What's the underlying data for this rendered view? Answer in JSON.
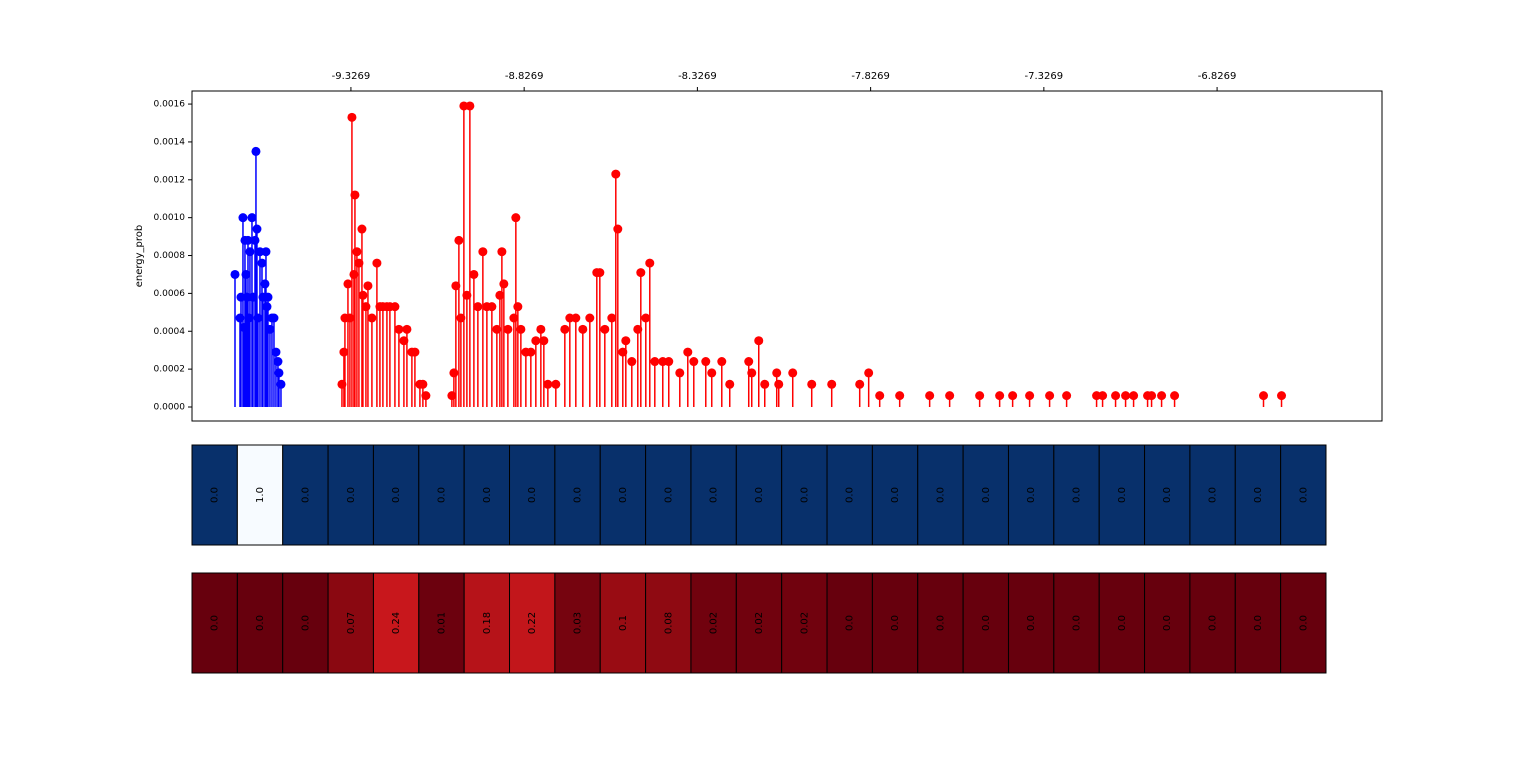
{
  "chart_data": [
    {
      "type": "stem",
      "ylabel": "energy_prob",
      "xlim": [
        -9.7856,
        -6.3509
      ],
      "xticks": [
        -9.3269,
        -8.8269,
        -8.3269,
        -7.8269,
        -7.3269,
        -6.8269
      ],
      "ylim": [
        -7.4e-05,
        0.001669
      ],
      "yticks": [
        {
          "value": 0,
          "label": "0.0000"
        },
        {
          "value": 0.0002,
          "label": "0.0002"
        },
        {
          "value": 0.0004,
          "label": "0.0004"
        },
        {
          "value": 0.0006,
          "label": "0.0006"
        },
        {
          "value": 0.0008,
          "label": "0.0008"
        },
        {
          "value": 0.001,
          "label": "0.0010"
        },
        {
          "value": 0.0012,
          "label": "0.0012"
        },
        {
          "value": 0.0014,
          "label": "0.0014"
        },
        {
          "value": 0.0016,
          "label": "0.0016"
        }
      ],
      "series": [
        {
          "color": "#0000ff",
          "x": [
            -9.6615,
            -9.6471,
            -9.6442,
            -9.6385,
            -9.6356,
            -9.6327,
            -9.6298,
            -9.6269,
            -9.624,
            -9.6212,
            -9.6183,
            -9.6125,
            -9.6096,
            -9.6038,
            -9.601,
            -9.5981,
            -9.5952,
            -9.5894,
            -9.5836,
            -9.5808,
            -9.575,
            -9.5721,
            -9.5692,
            -9.5663,
            -9.5606,
            -9.5548,
            -9.549,
            -9.5433,
            -9.5375,
            -9.5346,
            -9.5288
          ],
          "values": [
            0.0007,
            0.00047,
            0.00058,
            0.001,
            0.00042,
            0.00088,
            0.0007,
            0.00058,
            0.00088,
            0.00047,
            0.00082,
            0.001,
            0.00058,
            0.00088,
            0.00135,
            0.00094,
            0.00047,
            0.00082,
            0.00076,
            0.00058,
            0.00065,
            0.00082,
            0.00053,
            0.00058,
            0.00041,
            0.00047,
            0.00047,
            0.00029,
            0.00024,
            0.00018,
            0.00012
          ]
        },
        {
          "color": "#ff0000",
          "x": [
            -9.3528,
            -9.3471,
            -9.3442,
            -9.3355,
            -9.3298,
            -9.324,
            -9.3182,
            -9.3153,
            -9.3096,
            -9.3038,
            -9.2951,
            -9.2923,
            -9.2836,
            -9.2778,
            -9.2663,
            -9.2519,
            -9.2432,
            -9.2346,
            -9.223,
            -9.2144,
            -9.1999,
            -9.1884,
            -9.174,
            -9.1653,
            -9.1509,
            -9.1422,
            -9.1278,
            -9.1192,
            -9.1105,
            -9.0355,
            -9.0297,
            -9.024,
            -9.0153,
            -9.0095,
            -9.0009,
            -8.9922,
            -8.9836,
            -8.972,
            -8.9605,
            -8.9461,
            -8.9345,
            -8.9201,
            -8.9057,
            -8.897,
            -8.8912,
            -8.8855,
            -8.8739,
            -8.8566,
            -8.8509,
            -8.8451,
            -8.8364,
            -8.822,
            -8.8076,
            -8.7932,
            -8.7787,
            -8.7701,
            -8.7585,
            -8.7355,
            -8.7095,
            -8.6951,
            -8.6778,
            -8.6576,
            -8.6374,
            -8.6172,
            -8.6085,
            -8.5941,
            -8.5739,
            -8.5624,
            -8.5566,
            -8.5422,
            -8.5335,
            -8.5162,
            -8.4989,
            -8.4902,
            -8.4758,
            -8.4643,
            -8.4498,
            -8.4268,
            -8.4095,
            -8.3777,
            -8.3546,
            -8.3373,
            -8.3027,
            -8.2854,
            -8.2565,
            -8.2335,
            -8.1787,
            -8.17,
            -8.1498,
            -8.1325,
            -8.0979,
            -8.0921,
            -8.0517,
            -7.9969,
            -7.9392,
            -7.8584,
            -7.8325,
            -7.8007,
            -7.743,
            -7.6565,
            -7.5988,
            -7.5122,
            -7.4545,
            -7.417,
            -7.368,
            -7.3103,
            -7.2612,
            -7.1747,
            -7.1574,
            -7.1199,
            -7.091,
            -7.0679,
            -7.0275,
            -7.016,
            -6.9871,
            -6.9496,
            -6.6929,
            -6.6409
          ],
          "values": [
            0.00012,
            0.00029,
            0.00047,
            0.00065,
            0.00047,
            0.00153,
            0.0007,
            0.00112,
            0.00082,
            0.00076,
            0.00094,
            0.00059,
            0.00053,
            0.00064,
            0.00047,
            0.00076,
            0.00053,
            0.00053,
            0.00053,
            0.00053,
            0.00053,
            0.00041,
            0.00035,
            0.00041,
            0.00029,
            0.00029,
            0.00012,
            0.00012,
            6e-05,
            6e-05,
            0.00018,
            0.00064,
            0.00088,
            0.00047,
            0.00159,
            0.00059,
            0.00159,
            0.0007,
            0.00053,
            0.00082,
            0.00053,
            0.00053,
            0.00041,
            0.00059,
            0.00082,
            0.00065,
            0.00041,
            0.00047,
            0.001,
            0.00053,
            0.00041,
            0.00029,
            0.00029,
            0.00035,
            0.00041,
            0.00035,
            0.00012,
            0.00012,
            0.00041,
            0.00047,
            0.00047,
            0.00041,
            0.00047,
            0.00071,
            0.00071,
            0.00041,
            0.00047,
            0.00123,
            0.00094,
            0.00029,
            0.00035,
            0.00024,
            0.00041,
            0.00071,
            0.00047,
            0.00076,
            0.00024,
            0.00024,
            0.00024,
            0.00018,
            0.00029,
            0.00024,
            0.00024,
            0.00018,
            0.00024,
            0.00012,
            0.00024,
            0.00018,
            0.00035,
            0.00012,
            0.00018,
            0.00012,
            0.00018,
            0.00012,
            0.00012,
            0.00012,
            0.00018,
            6e-05,
            6e-05,
            6e-05,
            6e-05,
            6e-05,
            6e-05,
            6e-05,
            6e-05,
            6e-05,
            6e-05,
            6e-05,
            6e-05,
            6e-05,
            6e-05,
            6e-05,
            6e-05,
            6e-05,
            6e-05,
            6e-05,
            6e-05,
            6e-05
          ]
        }
      ]
    },
    {
      "type": "heatmap",
      "cmap": [
        "#08306b",
        "#08519c",
        "#2171b5",
        "#4292c6",
        "#6baed6",
        "#9ecae1",
        "#c6dbef",
        "#deebf7",
        "#f7fbff"
      ],
      "values": [
        0,
        1,
        0,
        0,
        0,
        0,
        0,
        0,
        0,
        0,
        0,
        0,
        0,
        0,
        0,
        0,
        0,
        0,
        0,
        0,
        0,
        0,
        0,
        0,
        0
      ],
      "value_labels": [
        "0.0",
        "1.0",
        "0.0",
        "0.0",
        "0.0",
        "0.0",
        "0.0",
        "0.0",
        "0.0",
        "0.0",
        "0.0",
        "0.0",
        "0.0",
        "0.0",
        "0.0",
        "0.0",
        "0.0",
        "0.0",
        "0.0",
        "0.0",
        "0.0",
        "0.0",
        "0.0",
        "0.0",
        "0.0"
      ]
    },
    {
      "type": "heatmap",
      "cmap": [
        "#67000d",
        "#a50f15",
        "#cb181d",
        "#ef3b2c",
        "#fb6a4a",
        "#fc9272",
        "#fcbba1",
        "#fee0d2",
        "#fff5f0"
      ],
      "values": [
        0,
        0,
        0,
        0.07,
        0.24,
        0.01,
        0.18,
        0.22,
        0.03,
        0.1,
        0.08,
        0.02,
        0.02,
        0.02,
        0,
        0,
        0,
        0,
        0,
        0,
        0,
        0,
        0,
        0,
        0
      ],
      "value_labels": [
        "0.0",
        "0.0",
        "0.0",
        "0.07",
        "0.24",
        "0.01",
        "0.18",
        "0.22",
        "0.03",
        "0.1",
        "0.08",
        "0.02",
        "0.02",
        "0.02",
        "0.0",
        "0.0",
        "0.0",
        "0.0",
        "0.0",
        "0.0",
        "0.0",
        "0.0",
        "0.0",
        "0.0",
        "0.0"
      ]
    }
  ]
}
